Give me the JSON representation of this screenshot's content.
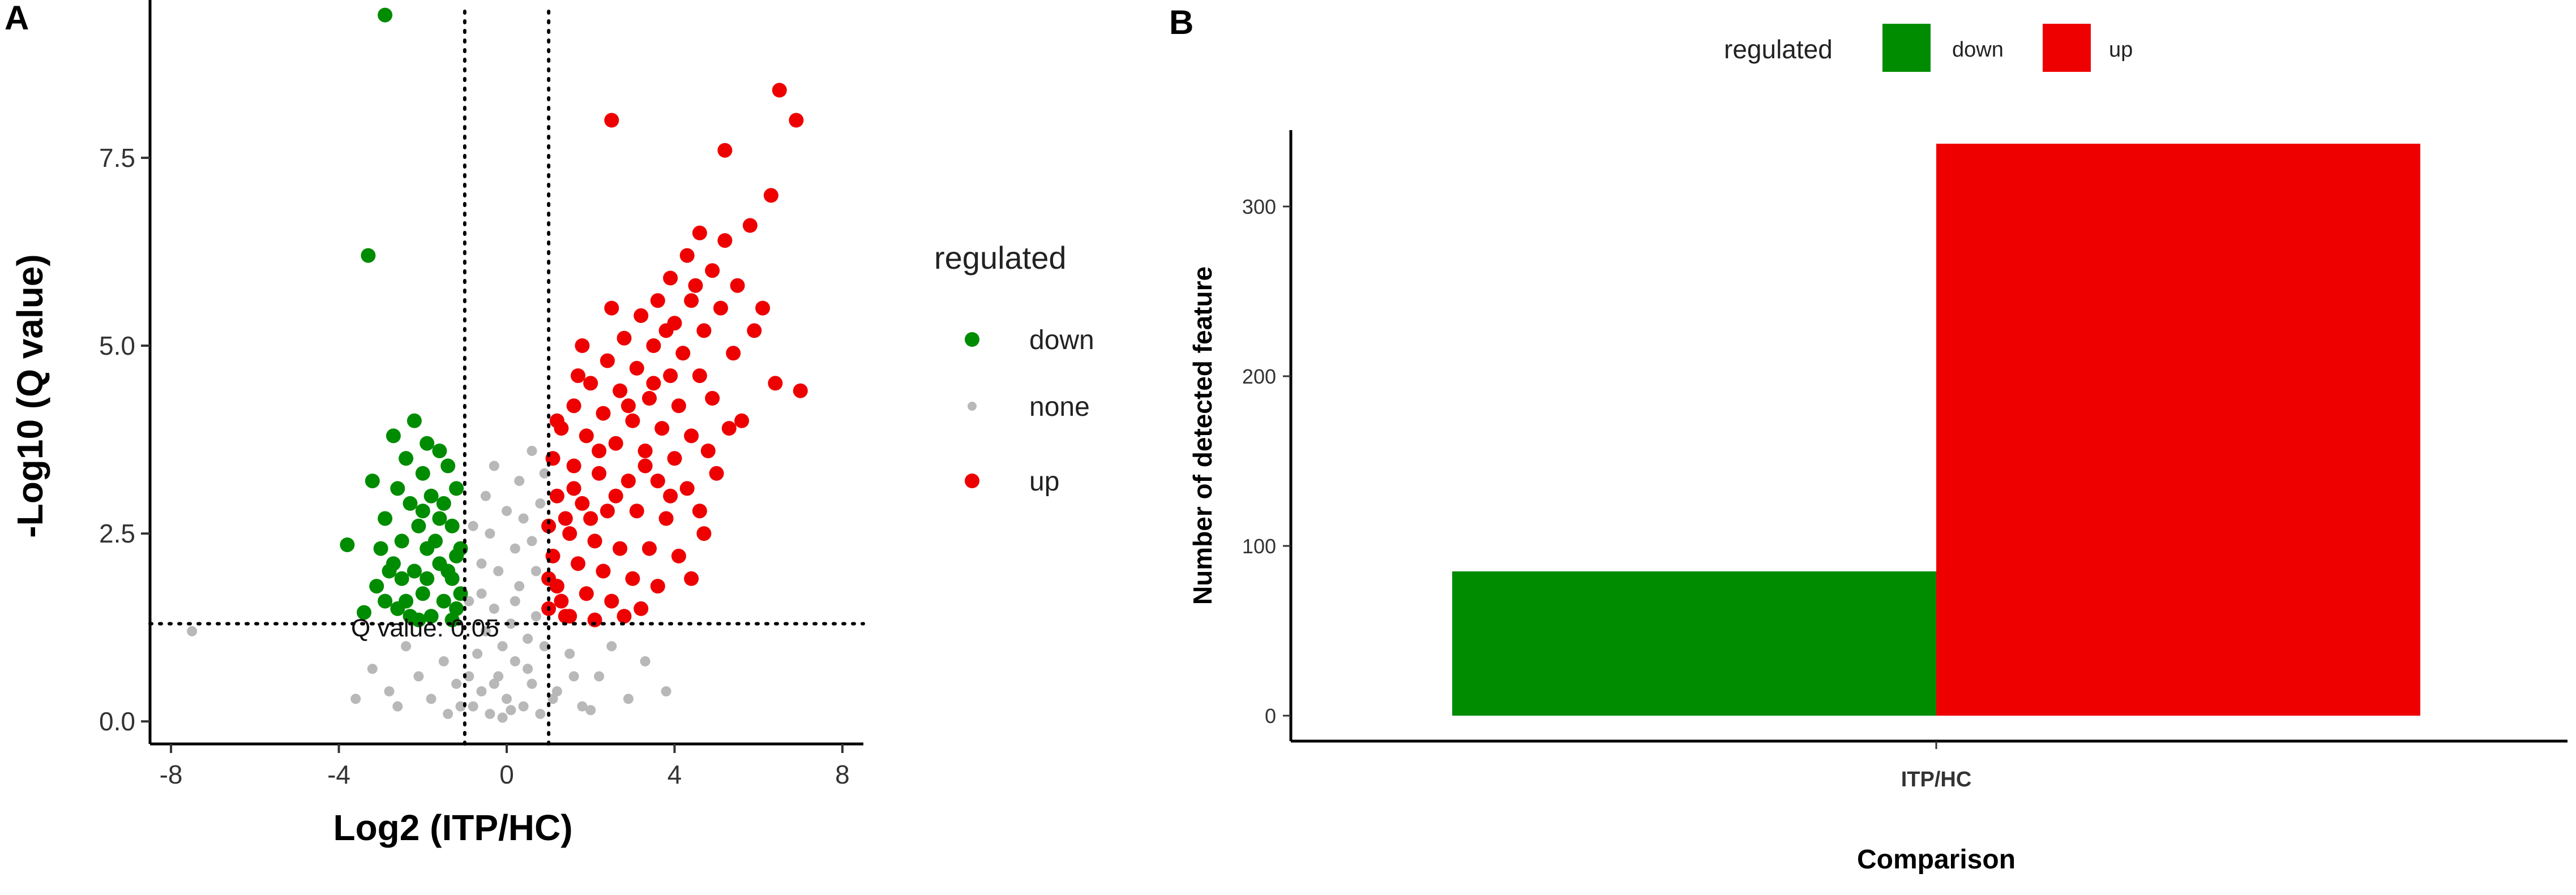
{
  "colors": {
    "down": "#008c00",
    "none": "#b8b8b8",
    "up": "#ee0000",
    "axis": "#000000"
  },
  "chart_data": [
    {
      "panel": "A",
      "type": "scatter",
      "xlabel": "Log2 (ITP/HC)",
      "ylabel": "-Log10 (Q value)",
      "xlim": [
        -8.5,
        8.5
      ],
      "ylim": [
        -0.3,
        9.6
      ],
      "xticks": [
        -8,
        -4,
        0,
        4,
        8
      ],
      "yticks": [
        0.0,
        2.5,
        5.0,
        7.5
      ],
      "xtick_labels": [
        "-8",
        "-4",
        "0",
        "4",
        "8"
      ],
      "ytick_labels": [
        "0.0",
        "2.5",
        "5.0",
        "7.5"
      ],
      "grid": false,
      "legend": {
        "title": "regulated",
        "placement": "right",
        "entries": [
          "down",
          "none",
          "up"
        ]
      },
      "reference_lines": {
        "vertical": [
          -1,
          1
        ],
        "horizontal": 1.3,
        "style": "dotted"
      },
      "annotation": "Q value: 0.05",
      "series": [
        {
          "name": "down",
          "points": [
            [
              -2.9,
              9.4
            ],
            [
              -3.3,
              6.2
            ],
            [
              -2.2,
              4.0
            ],
            [
              -2.7,
              3.8
            ],
            [
              -1.9,
              3.7
            ],
            [
              -2.4,
              3.5
            ],
            [
              -1.6,
              3.6
            ],
            [
              -2.0,
              3.3
            ],
            [
              -3.2,
              3.2
            ],
            [
              -2.6,
              3.1
            ],
            [
              -1.4,
              3.4
            ],
            [
              -1.8,
              3.0
            ],
            [
              -2.3,
              2.9
            ],
            [
              -1.2,
              3.1
            ],
            [
              -2.9,
              2.7
            ],
            [
              -1.6,
              2.7
            ],
            [
              -2.1,
              2.6
            ],
            [
              -3.0,
              2.3
            ],
            [
              -1.3,
              2.6
            ],
            [
              -2.5,
              2.4
            ],
            [
              -1.9,
              2.3
            ],
            [
              -3.8,
              2.35
            ],
            [
              -1.1,
              2.3
            ],
            [
              -2.7,
              2.1
            ],
            [
              -1.6,
              2.1
            ],
            [
              -2.2,
              2.0
            ],
            [
              -1.3,
              1.9
            ],
            [
              -3.1,
              1.8
            ],
            [
              -2.0,
              1.7
            ],
            [
              -1.5,
              1.6
            ],
            [
              -2.6,
              1.5
            ],
            [
              -1.2,
              1.5
            ],
            [
              -2.3,
              1.4
            ],
            [
              -1.8,
              1.4
            ],
            [
              -3.4,
              1.45
            ],
            [
              -1.1,
              1.7
            ],
            [
              -2.9,
              1.6
            ],
            [
              -1.4,
              2.0
            ],
            [
              -2.5,
              1.9
            ],
            [
              -1.7,
              2.4
            ],
            [
              -2.0,
              2.8
            ],
            [
              -1.5,
              2.9
            ],
            [
              -2.8,
              2.0
            ],
            [
              -1.2,
              2.2
            ],
            [
              -2.4,
              1.6
            ],
            [
              -1.9,
              1.9
            ],
            [
              -1.3,
              1.35
            ],
            [
              -2.1,
              1.35
            ]
          ]
        },
        {
          "name": "none",
          "points": [
            [
              -0.8,
              0.2
            ],
            [
              -0.6,
              0.4
            ],
            [
              -0.4,
              0.1
            ],
            [
              -0.2,
              0.6
            ],
            [
              0.0,
              0.3
            ],
            [
              0.2,
              0.8
            ],
            [
              0.4,
              0.2
            ],
            [
              0.6,
              0.5
            ],
            [
              0.8,
              0.1
            ],
            [
              -0.7,
              0.9
            ],
            [
              -0.5,
              1.2
            ],
            [
              -0.3,
              1.5
            ],
            [
              -0.1,
              1.0
            ],
            [
              0.1,
              1.3
            ],
            [
              0.3,
              1.8
            ],
            [
              0.5,
              1.1
            ],
            [
              0.7,
              2.0
            ],
            [
              -0.9,
              1.6
            ],
            [
              -0.6,
              2.1
            ],
            [
              -0.4,
              2.5
            ],
            [
              -0.2,
              2.0
            ],
            [
              0.2,
              2.3
            ],
            [
              0.4,
              2.7
            ],
            [
              0.6,
              2.4
            ],
            [
              0.8,
              2.9
            ],
            [
              -0.8,
              2.6
            ],
            [
              -0.5,
              3.0
            ],
            [
              0.0,
              2.8
            ],
            [
              0.3,
              3.2
            ],
            [
              -0.3,
              3.4
            ],
            [
              0.6,
              3.6
            ],
            [
              0.9,
              3.3
            ],
            [
              -1.2,
              0.5
            ],
            [
              -1.5,
              0.8
            ],
            [
              -1.8,
              0.3
            ],
            [
              -2.1,
              0.6
            ],
            [
              -2.4,
              1.0
            ],
            [
              -2.8,
              0.4
            ],
            [
              -3.2,
              0.7
            ],
            [
              1.2,
              0.4
            ],
            [
              1.5,
              0.9
            ],
            [
              1.8,
              0.2
            ],
            [
              2.2,
              0.6
            ],
            [
              2.5,
              1.0
            ],
            [
              2.9,
              0.3
            ],
            [
              3.3,
              0.8
            ],
            [
              -7.5,
              1.2
            ],
            [
              -0.1,
              0.05
            ],
            [
              0.1,
              0.15
            ],
            [
              -0.3,
              0.5
            ],
            [
              0.5,
              0.7
            ],
            [
              -0.6,
              1.7
            ],
            [
              0.2,
              1.6
            ],
            [
              0.7,
              1.4
            ],
            [
              -0.9,
              0.6
            ],
            [
              0.9,
              1.0
            ],
            [
              -1.1,
              0.2
            ],
            [
              1.1,
              0.3
            ],
            [
              -2.6,
              0.2
            ],
            [
              2.0,
              0.15
            ],
            [
              -3.6,
              0.3
            ],
            [
              3.8,
              0.4
            ],
            [
              -1.4,
              0.1
            ],
            [
              1.6,
              0.6
            ]
          ]
        },
        {
          "name": "up",
          "points": [
            [
              6.5,
              8.4
            ],
            [
              6.9,
              8.0
            ],
            [
              2.5,
              8.0
            ],
            [
              5.2,
              7.6
            ],
            [
              6.3,
              7.0
            ],
            [
              5.8,
              6.6
            ],
            [
              4.6,
              6.5
            ],
            [
              5.2,
              6.4
            ],
            [
              4.3,
              6.2
            ],
            [
              4.9,
              6.0
            ],
            [
              3.9,
              5.9
            ],
            [
              5.5,
              5.8
            ],
            [
              3.6,
              5.6
            ],
            [
              4.4,
              5.6
            ],
            [
              5.1,
              5.5
            ],
            [
              6.1,
              5.5
            ],
            [
              3.2,
              5.4
            ],
            [
              4.0,
              5.3
            ],
            [
              4.7,
              5.2
            ],
            [
              2.8,
              5.1
            ],
            [
              3.5,
              5.0
            ],
            [
              4.2,
              4.9
            ],
            [
              5.4,
              4.9
            ],
            [
              2.4,
              4.8
            ],
            [
              3.1,
              4.7
            ],
            [
              3.9,
              4.6
            ],
            [
              4.6,
              4.6
            ],
            [
              6.4,
              4.5
            ],
            [
              7.0,
              4.4
            ],
            [
              2.0,
              4.5
            ],
            [
              2.7,
              4.4
            ],
            [
              3.4,
              4.3
            ],
            [
              4.1,
              4.2
            ],
            [
              1.6,
              4.2
            ],
            [
              2.3,
              4.1
            ],
            [
              3.0,
              4.0
            ],
            [
              3.7,
              3.9
            ],
            [
              4.4,
              3.8
            ],
            [
              5.3,
              3.9
            ],
            [
              1.3,
              3.9
            ],
            [
              1.9,
              3.8
            ],
            [
              2.6,
              3.7
            ],
            [
              3.3,
              3.6
            ],
            [
              4.0,
              3.5
            ],
            [
              4.8,
              3.6
            ],
            [
              1.1,
              3.5
            ],
            [
              1.6,
              3.4
            ],
            [
              2.2,
              3.3
            ],
            [
              2.9,
              3.2
            ],
            [
              3.6,
              3.2
            ],
            [
              4.3,
              3.1
            ],
            [
              5.0,
              3.3
            ],
            [
              1.2,
              3.0
            ],
            [
              1.8,
              2.9
            ],
            [
              2.4,
              2.8
            ],
            [
              3.1,
              2.8
            ],
            [
              3.8,
              2.7
            ],
            [
              4.6,
              2.8
            ],
            [
              1.0,
              2.6
            ],
            [
              1.5,
              2.5
            ],
            [
              2.1,
              2.4
            ],
            [
              2.7,
              2.3
            ],
            [
              3.4,
              2.3
            ],
            [
              4.1,
              2.2
            ],
            [
              1.1,
              2.2
            ],
            [
              1.7,
              2.1
            ],
            [
              2.3,
              2.0
            ],
            [
              3.0,
              1.9
            ],
            [
              3.6,
              1.8
            ],
            [
              4.4,
              1.9
            ],
            [
              1.2,
              1.8
            ],
            [
              1.9,
              1.7
            ],
            [
              2.5,
              1.6
            ],
            [
              3.2,
              1.5
            ],
            [
              1.0,
              1.5
            ],
            [
              1.5,
              1.4
            ],
            [
              2.1,
              1.35
            ],
            [
              2.8,
              1.4
            ],
            [
              1.3,
              1.6
            ],
            [
              2.0,
              2.7
            ],
            [
              2.6,
              3.0
            ],
            [
              3.3,
              3.4
            ],
            [
              1.4,
              2.7
            ],
            [
              2.2,
              3.6
            ],
            [
              2.9,
              4.2
            ],
            [
              1.7,
              4.6
            ],
            [
              3.5,
              4.5
            ],
            [
              4.9,
              4.3
            ],
            [
              5.6,
              4.0
            ],
            [
              1.8,
              5.0
            ],
            [
              2.5,
              5.5
            ],
            [
              3.8,
              5.2
            ],
            [
              4.5,
              5.8
            ],
            [
              5.9,
              5.2
            ],
            [
              1.2,
              4.0
            ],
            [
              1.6,
              3.1
            ],
            [
              3.9,
              3.0
            ],
            [
              4.7,
              2.5
            ],
            [
              1.0,
              1.9
            ],
            [
              1.4,
              1.4
            ]
          ]
        }
      ]
    },
    {
      "panel": "B",
      "type": "bar",
      "categories": [
        "ITP/HC"
      ],
      "series": [
        {
          "name": "down",
          "values": [
            85
          ]
        },
        {
          "name": "up",
          "values": [
            337
          ]
        }
      ],
      "xlabel": "Comparison",
      "ylabel": "Number of detected feature",
      "ylim": [
        0,
        345
      ],
      "yticks": [
        0,
        100,
        200,
        300
      ],
      "ytick_labels": [
        "0",
        "100",
        "200",
        "300"
      ],
      "grid": false,
      "legend": {
        "title": "regulated",
        "placement": "top",
        "entries": [
          "down",
          "up"
        ]
      }
    }
  ]
}
